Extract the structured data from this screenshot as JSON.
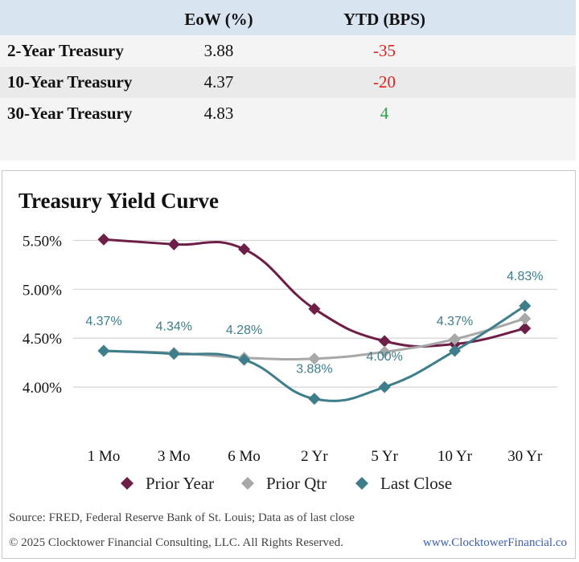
{
  "table": {
    "headers": {
      "eow": "EoW (%)",
      "ytd": "YTD (BPS)"
    },
    "rows": [
      {
        "name": "2-Year Treasury",
        "eow": "3.88",
        "ytd": "-35",
        "ytd_color": "#e02020"
      },
      {
        "name": "10-Year Treasury",
        "eow": "4.37",
        "ytd": "-20",
        "ytd_color": "#e02020"
      },
      {
        "name": "30-Year Treasury",
        "eow": "4.83",
        "ytd": "4",
        "ytd_color": "#2fa04a"
      }
    ]
  },
  "chart_data": {
    "type": "line",
    "title": "Treasury Yield Curve",
    "categories": [
      "1 Mo",
      "3 Mo",
      "6 Mo",
      "2 Yr",
      "5 Yr",
      "10 Yr",
      "30 Yr"
    ],
    "ylim": [
      3.5,
      5.75
    ],
    "yticks": [
      4.0,
      4.5,
      5.0,
      5.5
    ],
    "ytick_labels": [
      "4.00%",
      "4.50%",
      "5.00%",
      "5.50%"
    ],
    "grid": true,
    "legend_position": "bottom",
    "series": [
      {
        "name": "Prior Year",
        "color": "#6e1f47",
        "marker": "diamond",
        "values": [
          5.51,
          5.46,
          5.41,
          4.8,
          4.47,
          4.44,
          4.6
        ]
      },
      {
        "name": "Prior Qtr",
        "color": "#a8a8a8",
        "marker": "diamond",
        "values": [
          4.37,
          4.35,
          4.3,
          4.29,
          4.36,
          4.49,
          4.7
        ]
      },
      {
        "name": "Last Close",
        "color": "#3d7e8a",
        "marker": "diamond",
        "values": [
          4.37,
          4.34,
          4.28,
          3.88,
          4.0,
          4.37,
          4.83
        ],
        "data_labels": [
          "4.37%",
          "4.34%",
          "4.28%",
          "3.88%",
          "4.00%",
          "4.37%",
          "4.83%"
        ]
      }
    ]
  },
  "footer": {
    "source": "Source: FRED, Federal Reserve Bank of St. Louis; Data as of last close",
    "copyright": "© 2025 Clocktower Financial Consulting, LLC. All Rights Reserved.",
    "website": "www.ClocktowerFinancial.co"
  }
}
